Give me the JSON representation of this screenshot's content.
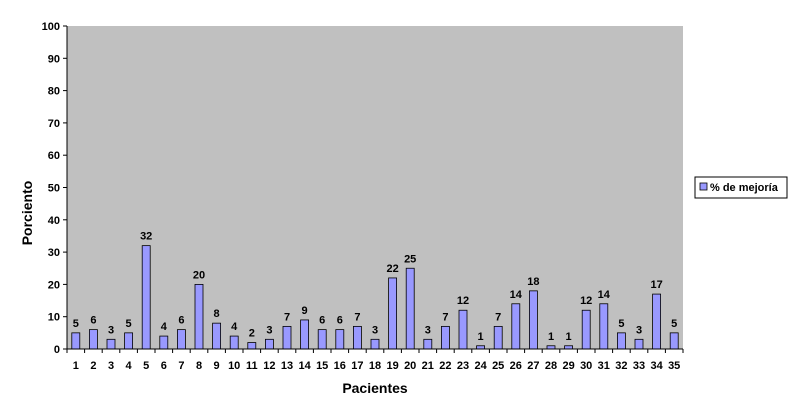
{
  "chart_data": {
    "type": "bar",
    "title": "",
    "xlabel": "Pacientes",
    "ylabel": "Porciento",
    "ylim": [
      0,
      100
    ],
    "yticks": [
      0,
      10,
      20,
      30,
      40,
      50,
      60,
      70,
      80,
      90,
      100
    ],
    "categories": [
      "1",
      "2",
      "3",
      "4",
      "5",
      "6",
      "7",
      "8",
      "9",
      "10",
      "11",
      "12",
      "13",
      "14",
      "15",
      "16",
      "17",
      "18",
      "19",
      "20",
      "21",
      "22",
      "23",
      "24",
      "25",
      "26",
      "27",
      "28",
      "29",
      "30",
      "31",
      "32",
      "33",
      "34",
      "35"
    ],
    "series": [
      {
        "name": "% de mejoría",
        "values": [
          5,
          6,
          3,
          5,
          32,
          4,
          6,
          20,
          8,
          4,
          2,
          3,
          7,
          9,
          6,
          6,
          7,
          3,
          22,
          25,
          3,
          7,
          12,
          1,
          7,
          14,
          18,
          1,
          1,
          12,
          14,
          5,
          3,
          17,
          5
        ]
      }
    ],
    "grid": false,
    "legend": "right",
    "colors": {
      "plot_background": "#c0c0c0",
      "bar_fill": "#9999ff",
      "bar_stroke": "#000000",
      "legend_border": "#000000"
    }
  }
}
